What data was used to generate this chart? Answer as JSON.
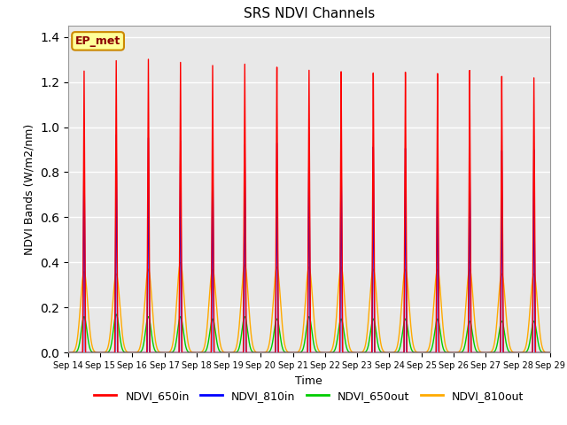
{
  "title": "SRS NDVI Channels",
  "xlabel": "Time",
  "ylabel": "NDVI Bands (W/m2/nm)",
  "annotation": "EP_met",
  "ylim": [
    0.0,
    1.45
  ],
  "yticks": [
    0.0,
    0.2,
    0.4,
    0.6,
    0.8,
    1.0,
    1.2,
    1.4
  ],
  "x_tick_labels": [
    "Sep 14",
    "Sep 15",
    "Sep 16",
    "Sep 17",
    "Sep 18",
    "Sep 19",
    "Sep 20",
    "Sep 21",
    "Sep 22",
    "Sep 23",
    "Sep 24",
    "Sep 25",
    "Sep 26",
    "Sep 27",
    "Sep 28",
    "Sep 29"
  ],
  "num_peaks": 15,
  "colors": {
    "NDVI_650in": "#ff0000",
    "NDVI_810in": "#0000ff",
    "NDVI_650out": "#00cc00",
    "NDVI_810out": "#ffaa00"
  },
  "peak_heights": {
    "NDVI_650in": [
      1.25,
      1.3,
      1.31,
      1.3,
      1.29,
      1.3,
      1.29,
      1.28,
      1.27,
      1.26,
      1.26,
      1.25,
      1.26,
      1.23,
      1.22
    ],
    "NDVI_810in": [
      0.95,
      0.97,
      0.96,
      0.95,
      0.95,
      0.94,
      0.95,
      0.95,
      0.94,
      0.93,
      0.92,
      0.92,
      0.92,
      0.9,
      0.9
    ],
    "NDVI_650out": [
      0.16,
      0.17,
      0.16,
      0.16,
      0.15,
      0.16,
      0.15,
      0.16,
      0.15,
      0.15,
      0.15,
      0.15,
      0.14,
      0.14,
      0.14
    ],
    "NDVI_810out": [
      0.36,
      0.35,
      0.37,
      0.4,
      0.37,
      0.39,
      0.38,
      0.38,
      0.38,
      0.37,
      0.37,
      0.37,
      0.37,
      0.35,
      0.35
    ]
  },
  "background_color": "#e8e8e8",
  "grid_color": "#ffffff",
  "annotation_bg": "#ffff99",
  "annotation_border": "#cc8800",
  "figsize": [
    6.4,
    4.8
  ],
  "dpi": 100
}
